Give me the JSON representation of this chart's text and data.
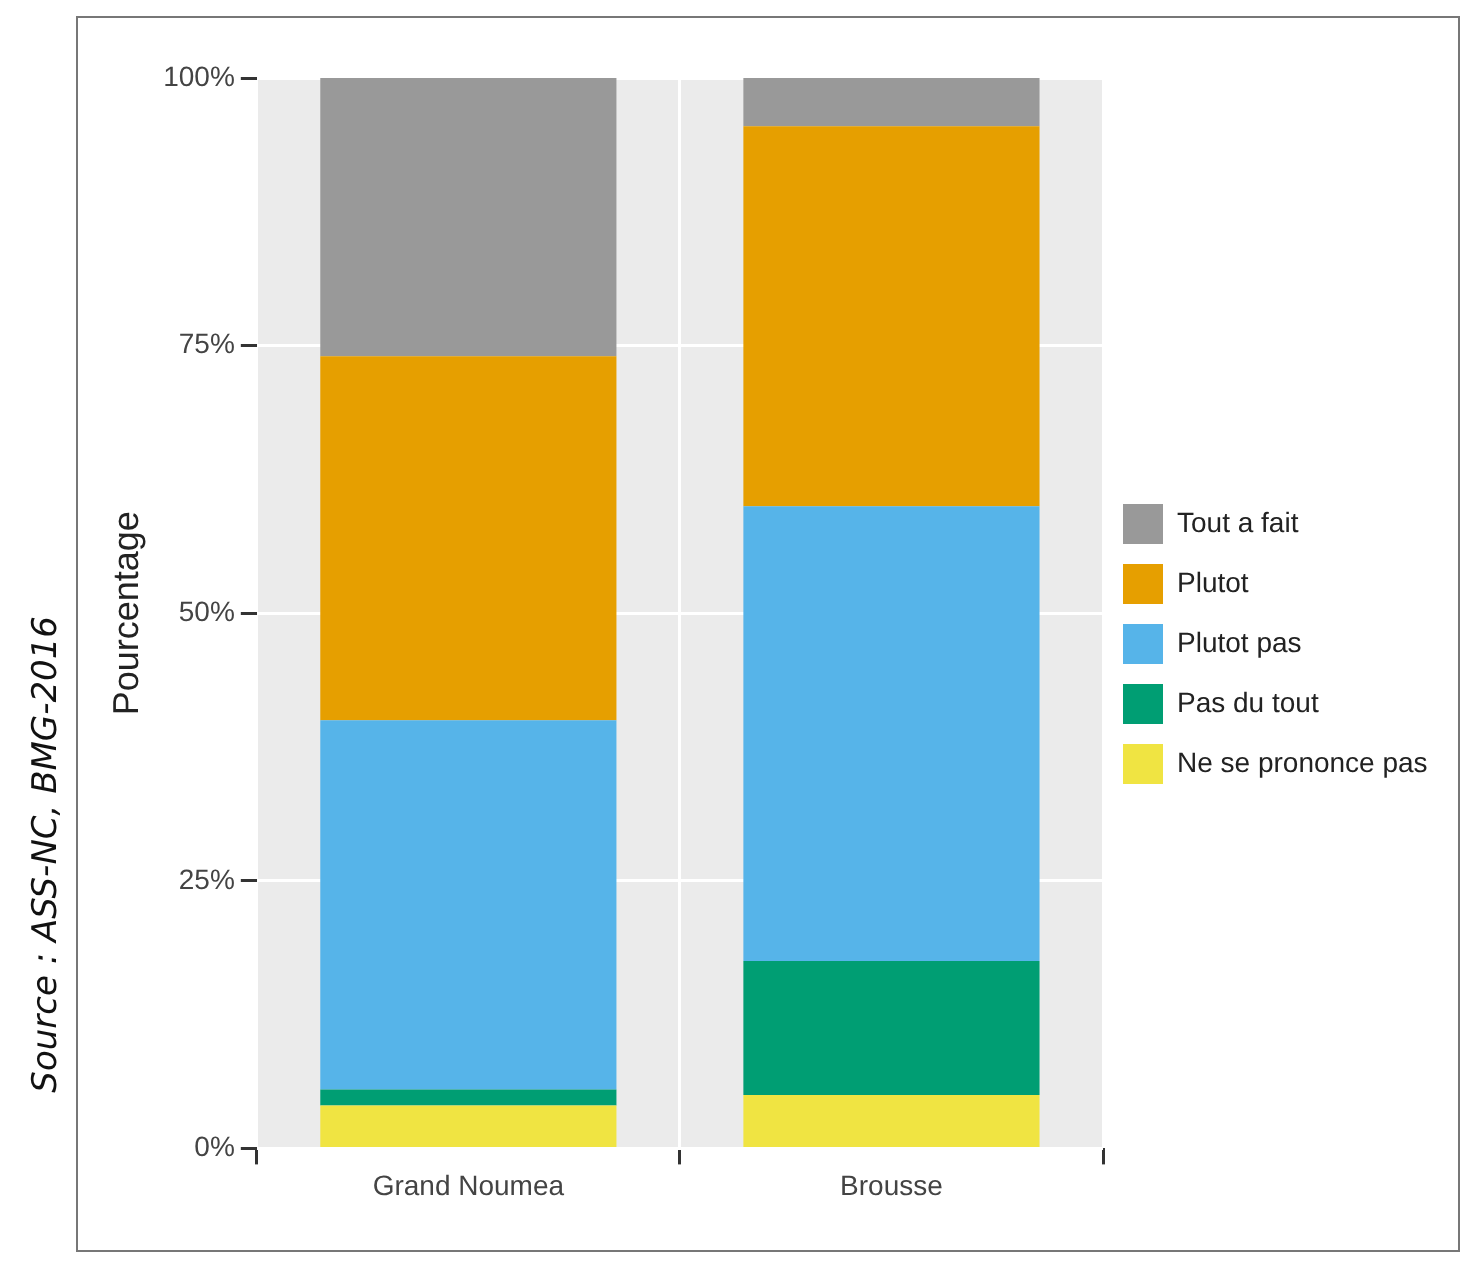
{
  "chart_data": {
    "type": "bar",
    "stacked": true,
    "ylabel": "Pourcentage",
    "categories": [
      "Grand Noumea",
      "Brousse"
    ],
    "series": [
      {
        "name": "Ne se prononce pas",
        "color": "#f0e442",
        "values": [
          4,
          5
        ]
      },
      {
        "name": "Pas du tout",
        "color": "#009e73",
        "values": [
          1.5,
          12.5
        ]
      },
      {
        "name": "Plutot pas",
        "color": "#56b4e9",
        "values": [
          34.5,
          42.5
        ]
      },
      {
        "name": "Plutot",
        "color": "#e69f00",
        "values": [
          34,
          35.5
        ]
      },
      {
        "name": "Tout a fait",
        "color": "#999999",
        "values": [
          26,
          4.5
        ]
      }
    ],
    "ylim": [
      0,
      100
    ],
    "yticks": [
      {
        "value": 0,
        "label": "0%"
      },
      {
        "value": 25,
        "label": "25%"
      },
      {
        "value": 50,
        "label": "50%"
      },
      {
        "value": 75,
        "label": "75%"
      },
      {
        "value": 100,
        "label": "100%"
      }
    ],
    "grid": true,
    "legend": "right",
    "annotations": [
      "Source : ASS-NC, BMG-2016"
    ]
  }
}
